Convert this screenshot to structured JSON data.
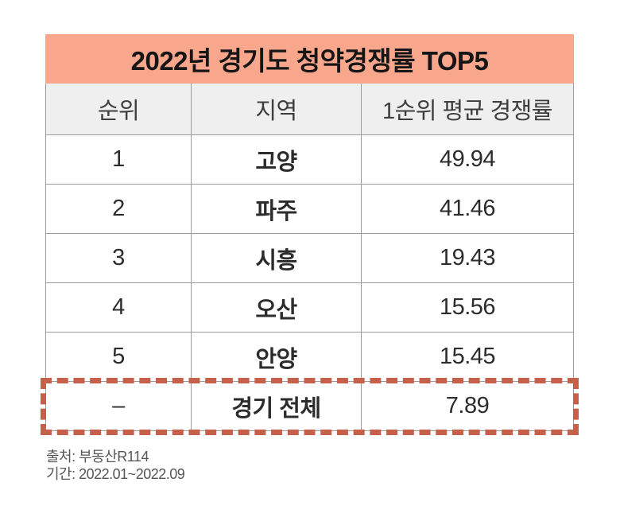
{
  "chart_data": {
    "type": "table",
    "title": "2022년 경기도 청약경쟁률 TOP5",
    "columns": [
      "순위",
      "지역",
      "1순위 평균 경쟁률"
    ],
    "rows": [
      [
        "1",
        "고양",
        "49.94"
      ],
      [
        "2",
        "파주",
        "41.46"
      ],
      [
        "3",
        "시흥",
        "19.43"
      ],
      [
        "4",
        "오산",
        "15.56"
      ],
      [
        "5",
        "안양",
        "15.45"
      ],
      [
        "–",
        "경기 전체",
        "7.89"
      ]
    ],
    "highlighted_row_region": "경기 전체",
    "highlight_style": "dashed-red-outline"
  },
  "footer": {
    "source": "출처: 부동산R114",
    "period": "기간: 2022.01~2022.09"
  },
  "colors": {
    "title_bg": "#F8A68C",
    "header_bg": "#EFEFEF",
    "grid_border": "#9C9C9C",
    "highlight_border": "#C7604A",
    "title_text": "#161616",
    "cell_text": "#2C2C2C",
    "footer_text": "#565656"
  }
}
